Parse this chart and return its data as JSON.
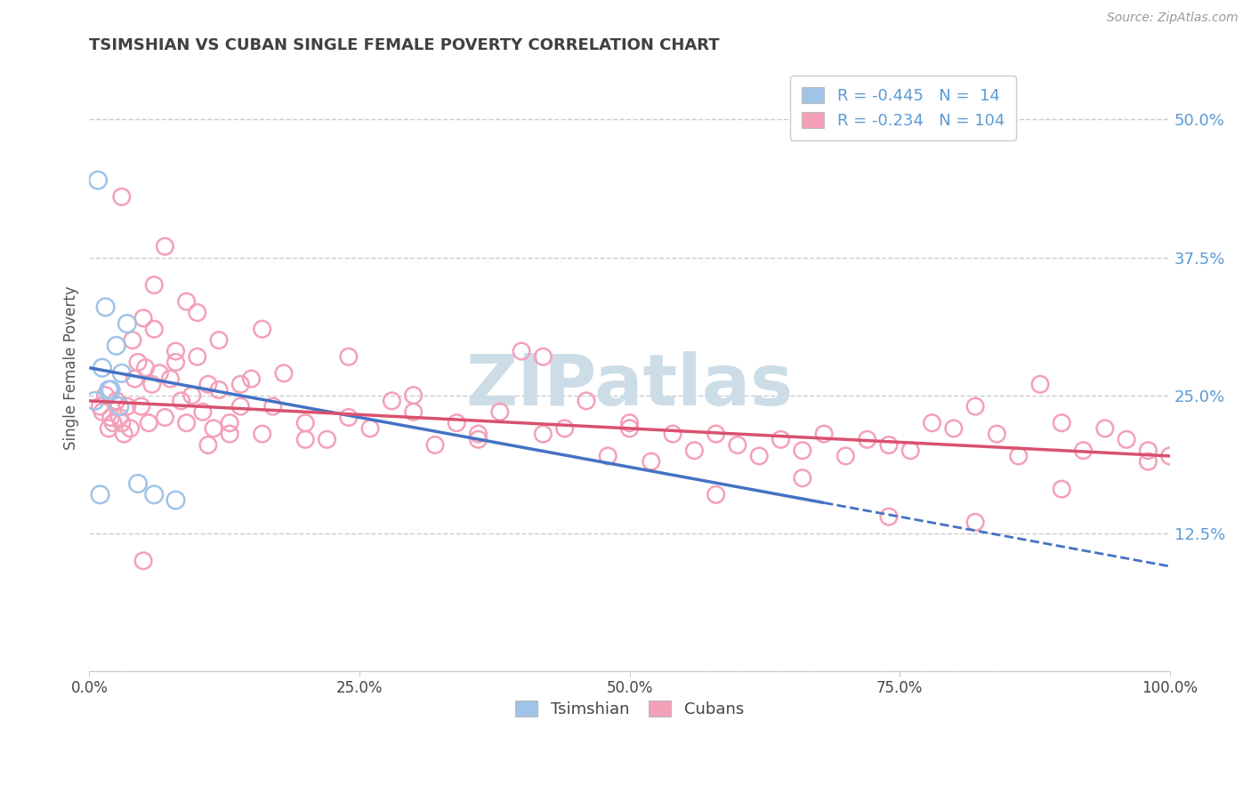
{
  "title": "TSIMSHIAN VS CUBAN SINGLE FEMALE POVERTY CORRELATION CHART",
  "source_text": "Source: ZipAtlas.com",
  "ylabel": "Single Female Poverty",
  "xlim": [
    0,
    100
  ],
  "ylim": [
    0,
    55
  ],
  "yticks": [
    0,
    12.5,
    25.0,
    37.5,
    50.0
  ],
  "ytick_labels": [
    "",
    "12.5%",
    "25.0%",
    "37.5%",
    "50.0%"
  ],
  "xtick_labels": [
    "0.0%",
    "25.0%",
    "50.0%",
    "75.0%",
    "100.0%"
  ],
  "xtick_positions": [
    0,
    25,
    50,
    75,
    100
  ],
  "tsimshian_color": "#a0c4e8",
  "cuban_color": "#f4a0b8",
  "tsimshian_line_color": "#4472c4",
  "cuban_line_color": "#d9516e",
  "legend_label_1": "R = -0.445   N =  14",
  "legend_label_2": "R = -0.234   N = 104",
  "watermark": "ZIPatlas",
  "watermark_color": "#ccdde8",
  "background_color": "#ffffff",
  "grid_color": "#cccccc",
  "ytick_color": "#5b9bd5",
  "title_color": "#404040",
  "source_color": "#999999",
  "ts_x": [
    0.8,
    1.5,
    2.5,
    3.5,
    1.2,
    2.0,
    3.0,
    4.5,
    6.0,
    0.5,
    1.8,
    2.8,
    8.0,
    1.0
  ],
  "ts_y": [
    44.5,
    33.0,
    29.5,
    31.5,
    27.5,
    25.5,
    27.0,
    17.0,
    16.0,
    24.5,
    25.5,
    24.0,
    15.5,
    16.0
  ],
  "cu_x": [
    1.0,
    1.2,
    1.5,
    1.8,
    2.0,
    2.2,
    2.5,
    2.8,
    3.0,
    3.2,
    3.5,
    3.8,
    4.0,
    4.2,
    4.5,
    4.8,
    5.0,
    5.2,
    5.5,
    5.8,
    6.0,
    6.5,
    7.0,
    7.5,
    8.0,
    8.5,
    9.0,
    9.5,
    10.0,
    10.5,
    11.0,
    11.5,
    12.0,
    13.0,
    14.0,
    15.0,
    16.0,
    17.0,
    18.0,
    20.0,
    22.0,
    24.0,
    26.0,
    28.0,
    30.0,
    32.0,
    34.0,
    36.0,
    38.0,
    40.0,
    42.0,
    44.0,
    46.0,
    48.0,
    50.0,
    52.0,
    54.0,
    56.0,
    58.0,
    60.0,
    62.0,
    64.0,
    66.0,
    68.0,
    70.0,
    72.0,
    74.0,
    76.0,
    78.0,
    80.0,
    82.0,
    84.0,
    86.0,
    88.0,
    90.0,
    92.0,
    94.0,
    96.0,
    98.0,
    100.0,
    6.0,
    8.0,
    10.0,
    12.0,
    14.0,
    16.0,
    20.0,
    24.0,
    30.0,
    36.0,
    42.0,
    50.0,
    58.0,
    66.0,
    74.0,
    82.0,
    90.0,
    98.0,
    5.0,
    3.0,
    7.0,
    9.0,
    11.0,
    13.0
  ],
  "cu_y": [
    24.0,
    23.5,
    25.0,
    22.0,
    23.0,
    22.5,
    24.5,
    23.0,
    22.5,
    21.5,
    24.0,
    22.0,
    30.0,
    26.5,
    28.0,
    24.0,
    32.0,
    27.5,
    22.5,
    26.0,
    31.0,
    27.0,
    23.0,
    26.5,
    29.0,
    24.5,
    22.5,
    25.0,
    28.5,
    23.5,
    26.0,
    22.0,
    25.5,
    22.5,
    24.0,
    26.5,
    21.5,
    24.0,
    27.0,
    22.5,
    21.0,
    23.0,
    22.0,
    24.5,
    23.5,
    20.5,
    22.5,
    21.0,
    23.5,
    29.0,
    21.5,
    22.0,
    24.5,
    19.5,
    22.0,
    19.0,
    21.5,
    20.0,
    21.5,
    20.5,
    19.5,
    21.0,
    20.0,
    21.5,
    19.5,
    21.0,
    20.5,
    20.0,
    22.5,
    22.0,
    24.0,
    21.5,
    19.5,
    26.0,
    22.5,
    20.0,
    22.0,
    21.0,
    20.0,
    19.5,
    35.0,
    28.0,
    32.5,
    30.0,
    26.0,
    31.0,
    21.0,
    28.5,
    25.0,
    21.5,
    28.5,
    22.5,
    16.0,
    17.5,
    14.0,
    13.5,
    16.5,
    19.0,
    10.0,
    43.0,
    38.5,
    33.5,
    20.5,
    21.5
  ],
  "ts_line_x0": 0,
  "ts_line_y0": 27.5,
  "ts_line_x1": 100,
  "ts_line_y1": 9.5,
  "ts_solid_end": 68,
  "cu_line_x0": 0,
  "cu_line_y0": 24.5,
  "cu_line_x1": 100,
  "cu_line_y1": 19.5
}
